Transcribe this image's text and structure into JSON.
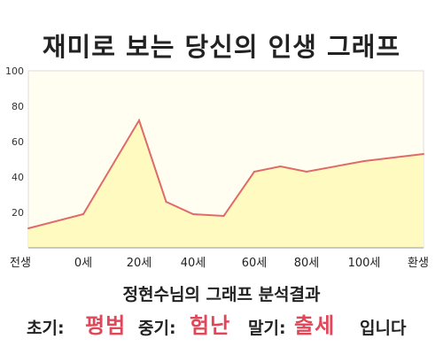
{
  "header": {
    "title": "재미로 보는 당신의 인생 그래프"
  },
  "colors": {
    "fill": "#fffbc0",
    "plot_bg": "#fffef0",
    "line": "#e06a6a",
    "highlight": "#e0485a"
  },
  "chart_data": {
    "type": "area",
    "title": "재미로 보는 당신의 인생 그래프",
    "x": [
      "전생",
      "0세",
      "20세",
      "40세",
      "60세",
      "80세",
      "100세",
      "환생"
    ],
    "y_ticks": [
      "20",
      "40",
      "60",
      "80",
      "100"
    ],
    "ylim": [
      0,
      100
    ],
    "series": [
      {
        "points": [
          {
            "x": "전생",
            "y": 11
          },
          {
            "x": "0세",
            "y": 19
          },
          {
            "x": "20세",
            "y": 72
          },
          {
            "x": "30세",
            "y": 26
          },
          {
            "x": "40세",
            "y": 19
          },
          {
            "x": "50세",
            "y": 18
          },
          {
            "x": "60세",
            "y": 43
          },
          {
            "x": "70세",
            "y": 46
          },
          {
            "x": "80세",
            "y": 43
          },
          {
            "x": "100세",
            "y": 49
          },
          {
            "x": "환생",
            "y": 53
          }
        ]
      }
    ],
    "grid": false
  },
  "result": {
    "subtitle": "정현수님의 그래프 분석결과",
    "early_label": "초기:",
    "early_value": "평범",
    "middle_label": "중기:",
    "middle_value": "험난",
    "late_label": "말기:",
    "late_value": "출세",
    "suffix": "입니다"
  }
}
